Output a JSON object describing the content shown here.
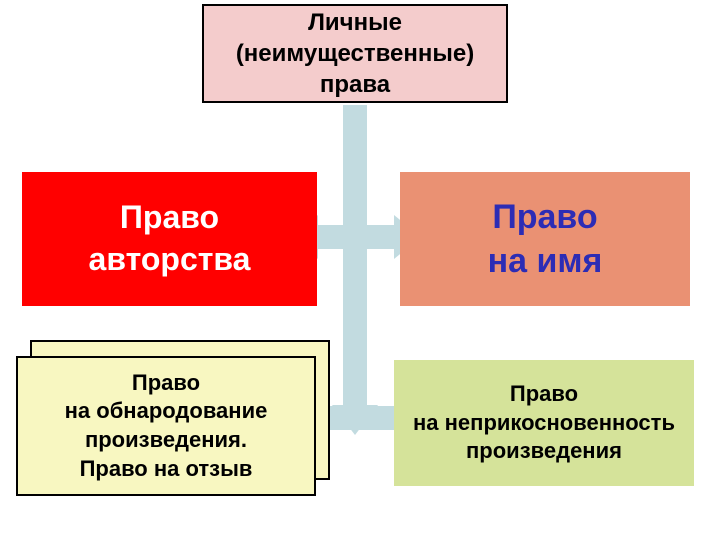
{
  "diagram": {
    "type": "flowchart",
    "background_color": "#ffffff",
    "arrow_color": "#c2dbe0",
    "top": {
      "text": "Личные\n(неимущественные)\nправа",
      "bg": "#f4cccc",
      "border": "#000000",
      "fontsize": 24,
      "color": "#000000",
      "bold": true
    },
    "left": {
      "text": "Право\nавторства",
      "bg": "#ff0000",
      "fontsize": 32,
      "color": "#ffffff",
      "bold": true
    },
    "right": {
      "text": "Право\nна имя",
      "bg": "#ea9173",
      "fontsize": 34,
      "color": "#2c2cb5",
      "bold": true
    },
    "bottom_left": {
      "text": "Право\nна обнародование\nпроизведения.\nПраво на отзыв",
      "bg": "#f8f7c1",
      "border": "#000000",
      "fontsize": 22,
      "color": "#000000",
      "bold": true,
      "has_shadow_box": true
    },
    "bottom_right": {
      "text": "Право\nна неприкосновенность\nпроизведения",
      "bg": "#d5e39a",
      "fontsize": 22,
      "color": "#000000",
      "bold": true
    }
  }
}
